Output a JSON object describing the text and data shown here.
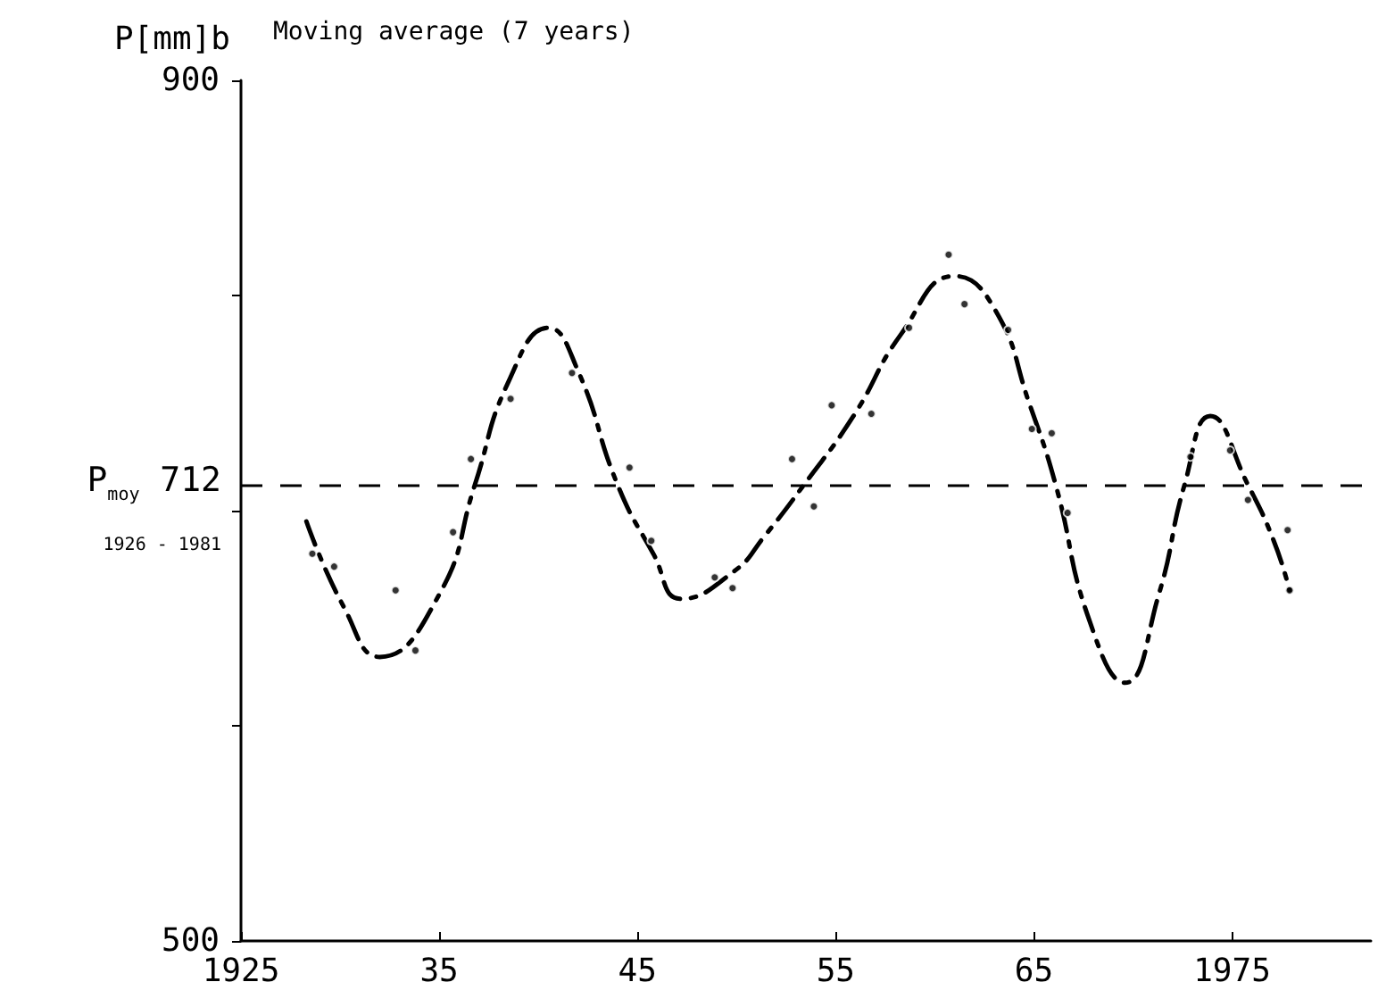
{
  "chart_data": {
    "type": "line",
    "title": "Moving average (7 years)",
    "ylabel": "P[mm]b",
    "xlim": [
      1925,
      1982
    ],
    "xticks": [
      1925,
      {
        "value": 1935,
        "label": "35"
      },
      {
        "value": 1945,
        "label": "45"
      },
      {
        "value": 1955,
        "label": "55"
      },
      {
        "value": 1965,
        "label": "65"
      },
      1975
    ],
    "ylim": [
      500,
      900
    ],
    "yticks": [
      500,
      {
        "value": 600,
        "label": null
      },
      {
        "value": 700,
        "label": null
      },
      {
        "value": 800,
        "label": null
      },
      900
    ],
    "ref_lines": [
      {
        "axis": "y",
        "value": 712,
        "label": "P$_{moy}$ 712\n$_{1926 - 1981}$",
        "line_style": "dashed",
        "color": "#000000"
      }
    ],
    "series": [
      {
        "type": "line",
        "color": "#000000",
        "line_style": "dashed",
        "marker": "none",
        "x": [
          1928.3,
          1930.2,
          1932,
          1935,
          1936.8,
          1938.5,
          1940.5,
          1942,
          1944,
          1945.8,
          1947.2,
          1949.9,
          1951.4,
          1953.4,
          1955.9,
          1958.3,
          1961,
          1963,
          1964.8,
          1966.1,
          1967.8,
          1969.6,
          1971.3,
          1972.6,
          1973.9,
          1975.8,
          1977.1,
          1977.9
        ],
        "values": [
          695,
          655,
          632,
          661,
          712,
          760,
          785,
          765,
          712,
          680,
          659,
          672,
          688,
          712,
          744,
          782,
          809,
          794,
          749,
          712,
          649,
          620,
          661,
          712,
          744,
          712,
          686,
          663
        ]
      },
      {
        "type": "scatter",
        "color": "#000000",
        "marker": "circle",
        "x": [
          1928.6,
          1929.7,
          1932.8,
          1933.8,
          1935.7,
          1936.6,
          1938.6,
          1941.7,
          1944.6,
          1945.7,
          1948.9,
          1949.8,
          1952.8,
          1953.9,
          1954.8,
          1956.8,
          1958.7,
          1960.7,
          1961.5,
          1963.7,
          1964.9,
          1965.9,
          1966.7,
          1972.9,
          1974.9,
          1975.8,
          1977.8,
          1977.9
        ],
        "values": [
          680,
          674,
          663,
          635,
          690,
          724,
          752,
          764,
          720,
          686,
          669,
          664,
          724,
          702,
          749,
          745,
          785,
          819,
          796,
          784,
          738,
          736,
          699,
          725,
          728,
          705,
          691,
          663
        ]
      }
    ]
  }
}
